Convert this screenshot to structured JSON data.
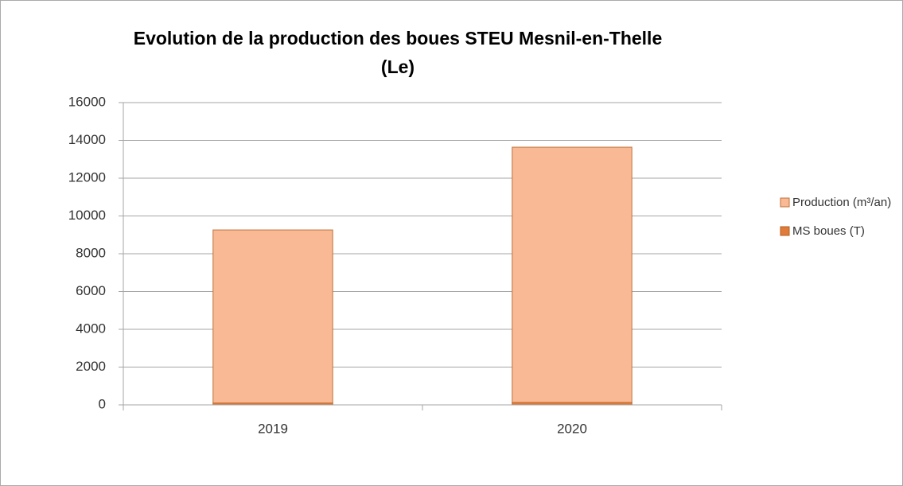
{
  "chart_data": {
    "type": "stacked_bar",
    "title": "Evolution de la production des boues STEU Mesnil-en-Thelle (Le)",
    "categories": [
      "2019",
      "2020"
    ],
    "series": [
      {
        "name": "MS boues (T)",
        "color": "#e07b39",
        "values": [
          100,
          130
        ]
      },
      {
        "name": "Production (m³/an)",
        "color": "#f8b994",
        "values": [
          9160,
          13510
        ]
      }
    ],
    "ylim": [
      0,
      16000
    ],
    "yticks": [
      0,
      2000,
      4000,
      6000,
      8000,
      10000,
      12000,
      14000,
      16000
    ],
    "grid": true,
    "legend": "right"
  }
}
